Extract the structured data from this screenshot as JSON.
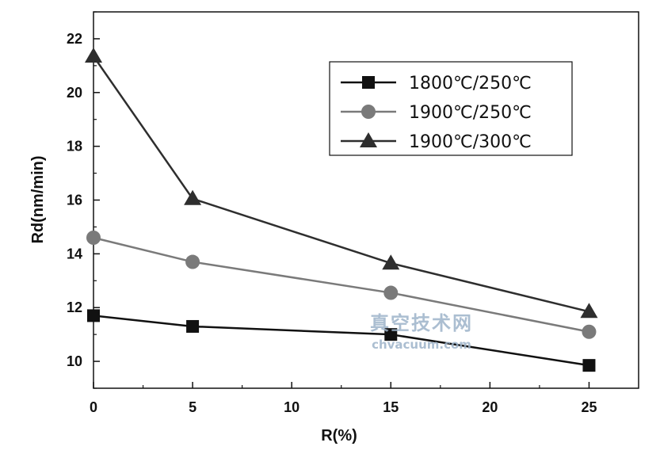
{
  "chart_data": {
    "type": "line",
    "xlabel": "R(%)",
    "ylabel": "Rd(nm/min)",
    "xlim": [
      0,
      27.5
    ],
    "ylim": [
      9,
      23
    ],
    "x_ticks": [
      0,
      5,
      10,
      15,
      20,
      25
    ],
    "y_ticks": [
      10,
      12,
      14,
      16,
      18,
      20,
      22
    ],
    "x": [
      0,
      5,
      15,
      25
    ],
    "legend_position": "top-right",
    "series": [
      {
        "name": "1800℃/250℃",
        "values": [
          11.7,
          11.3,
          11.0,
          9.85
        ],
        "marker": "square",
        "color": "#111111"
      },
      {
        "name": "1900℃/250℃",
        "values": [
          14.6,
          13.7,
          12.55,
          11.1
        ],
        "marker": "circle",
        "color": "#7a7a7a"
      },
      {
        "name": "1900℃/300℃",
        "values": [
          21.35,
          16.05,
          13.65,
          11.85
        ],
        "marker": "triangle",
        "color": "#2e2e2e"
      }
    ],
    "watermark": {
      "text": "真空技术网",
      "url": "chvacuum.com",
      "color": "#9db3c9"
    }
  }
}
